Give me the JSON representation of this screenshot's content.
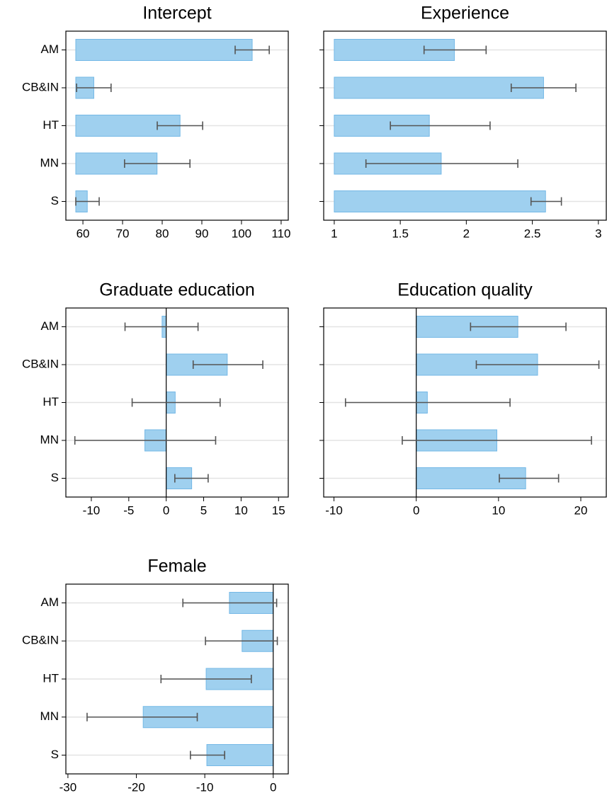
{
  "chart_data": [
    {
      "type": "bar",
      "title": "Intercept",
      "categories": [
        "AM",
        "CB&IN",
        "HT",
        "MN",
        "S"
      ],
      "category_labels": true,
      "series": [
        {
          "color": "#9fd0ef",
          "values": [
            102.7,
            62.75,
            84.5,
            78.7,
            61.1
          ],
          "lower": [
            98.4,
            58.4,
            78.75,
            70.5,
            58.2
          ],
          "upper": [
            107.0,
            67.1,
            90.2,
            87.0,
            64.1
          ]
        }
      ],
      "bar_base": 58.2,
      "zero_line": false,
      "xlim": [
        55.7,
        111.8
      ],
      "xticks": [
        60,
        70,
        80,
        90,
        100,
        110
      ],
      "grid": true
    },
    {
      "type": "bar",
      "title": "Experience",
      "categories": [
        "AM",
        "CB&IN",
        "HT",
        "MN",
        "S"
      ],
      "category_labels": false,
      "series": [
        {
          "color": "#9fd0ef",
          "values": [
            1.91,
            2.585,
            1.72,
            1.81,
            2.6
          ],
          "lower": [
            1.68,
            2.34,
            1.425,
            1.24,
            2.49
          ],
          "upper": [
            2.15,
            2.83,
            2.18,
            2.39,
            2.72
          ]
        }
      ],
      "bar_base": 1,
      "zero_line": false,
      "xlim": [
        0.92,
        3.06
      ],
      "xticks": [
        1,
        1.5,
        2,
        2.5,
        3
      ],
      "grid": true
    },
    {
      "type": "bar",
      "title": "Graduate education",
      "categories": [
        "AM",
        "CB&IN",
        "HT",
        "MN",
        "S"
      ],
      "category_labels": true,
      "series": [
        {
          "color": "#9fd0ef",
          "values": [
            -0.55,
            8.15,
            1.2,
            -2.85,
            3.4
          ],
          "lower": [
            -5.5,
            3.6,
            -4.55,
            -12.2,
            1.15
          ],
          "upper": [
            4.25,
            12.9,
            7.2,
            6.6,
            5.6
          ]
        }
      ],
      "bar_base": 0,
      "zero_line": true,
      "xlim": [
        -13.4,
        16.3
      ],
      "xticks": [
        -10,
        -5,
        0,
        5,
        10,
        15
      ],
      "grid": true
    },
    {
      "type": "bar",
      "title": "Education quality",
      "categories": [
        "AM",
        "CB&IN",
        "HT",
        "MN",
        "S"
      ],
      "category_labels": false,
      "series": [
        {
          "color": "#9fd0ef",
          "values": [
            12.35,
            14.75,
            1.35,
            9.8,
            13.3
          ],
          "lower": [
            6.6,
            7.3,
            -8.6,
            -1.7,
            10.1
          ],
          "upper": [
            18.2,
            22.2,
            11.4,
            21.3,
            17.3
          ]
        }
      ],
      "bar_base": 0,
      "zero_line": true,
      "xlim": [
        -11.25,
        23.1
      ],
      "xticks": [
        -10,
        0,
        10,
        20
      ],
      "grid": true
    },
    {
      "type": "bar",
      "title": "Female",
      "categories": [
        "AM",
        "CB&IN",
        "HT",
        "MN",
        "S"
      ],
      "category_labels": true,
      "series": [
        {
          "color": "#9fd0ef",
          "values": [
            -6.4,
            -4.55,
            -9.8,
            -19.0,
            -9.7
          ],
          "lower": [
            -13.2,
            -9.9,
            -16.4,
            -27.2,
            -12.1
          ],
          "upper": [
            0.5,
            0.6,
            -3.2,
            -11.1,
            -7.1
          ]
        }
      ],
      "bar_base": 0,
      "zero_line": true,
      "xlim": [
        -30.3,
        2.2
      ],
      "xticks": [
        -30,
        -20,
        -10,
        0
      ],
      "grid": true
    }
  ]
}
